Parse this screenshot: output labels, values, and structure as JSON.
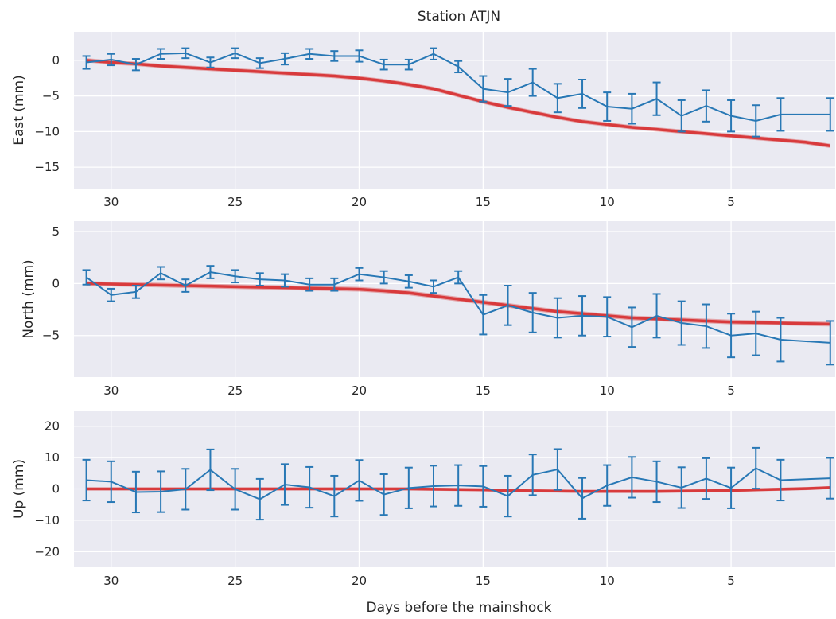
{
  "title": "Station ATJN",
  "xlabel": "Days before the mainshock",
  "colors": {
    "background": "#eaeaf2",
    "grid": "#ffffff",
    "observations": "#2878b5",
    "model": "#d62728"
  },
  "chart_data": [
    {
      "type": "line",
      "name": "east",
      "ylabel": "East (mm)",
      "xlim": [
        31.5,
        0.8
      ],
      "ylim": [
        -18,
        4
      ],
      "xticks": [
        30,
        25,
        20,
        15,
        10,
        5
      ],
      "yticks": [
        0,
        -5,
        -10,
        -15
      ],
      "grid": true,
      "series": [
        {
          "kind": "errorbar",
          "x": [
            31,
            30,
            29,
            28,
            27,
            26,
            25,
            24,
            23,
            22,
            21,
            20,
            19,
            18,
            17,
            16,
            15,
            14,
            13,
            12,
            11,
            10,
            9,
            8,
            7,
            6,
            5,
            4,
            3,
            1
          ],
          "y": [
            -0.3,
            0.1,
            -0.6,
            0.9,
            1.0,
            -0.3,
            1.0,
            -0.4,
            0.2,
            0.9,
            0.6,
            0.6,
            -0.6,
            -0.6,
            0.9,
            -0.9,
            -4.0,
            -4.5,
            -3.1,
            -5.3,
            -4.7,
            -6.5,
            -6.8,
            -5.4,
            -7.8,
            -6.4,
            -7.8,
            -8.5,
            -7.6,
            -7.6
          ],
          "err": [
            0.9,
            0.8,
            0.8,
            0.7,
            0.7,
            0.7,
            0.7,
            0.7,
            0.8,
            0.7,
            0.7,
            0.8,
            0.7,
            0.7,
            0.8,
            0.8,
            1.8,
            1.9,
            1.9,
            2.0,
            2.0,
            2.0,
            2.1,
            2.3,
            2.2,
            2.2,
            2.2,
            2.2,
            2.3,
            2.3
          ]
        },
        {
          "kind": "band",
          "x": [
            31,
            30,
            29,
            28,
            27,
            26,
            25,
            24,
            23,
            22,
            21,
            20,
            19,
            18,
            17,
            16,
            15,
            14,
            13,
            12,
            11,
            10,
            9,
            8,
            7,
            6,
            5,
            4,
            3,
            2,
            1
          ],
          "y": [
            0,
            -0.3,
            -0.5,
            -0.8,
            -1.0,
            -1.2,
            -1.4,
            -1.6,
            -1.8,
            -2.0,
            -2.2,
            -2.5,
            -2.9,
            -3.4,
            -4.0,
            -4.9,
            -5.8,
            -6.6,
            -7.3,
            -8.0,
            -8.6,
            -9.0,
            -9.4,
            -9.7,
            -10.0,
            -10.3,
            -10.6,
            -10.9,
            -11.2,
            -11.5,
            -12.0
          ],
          "width": 0.6
        }
      ]
    },
    {
      "type": "line",
      "name": "north",
      "ylabel": "North (mm)",
      "xlim": [
        31.5,
        0.8
      ],
      "ylim": [
        -9,
        6
      ],
      "xticks": [
        30,
        25,
        20,
        15,
        10,
        5
      ],
      "yticks": [
        5,
        0,
        -5
      ],
      "grid": true,
      "series": [
        {
          "kind": "errorbar",
          "x": [
            31,
            30,
            29,
            28,
            27,
            26,
            25,
            24,
            23,
            22,
            21,
            20,
            19,
            18,
            17,
            16,
            15,
            14,
            13,
            12,
            11,
            10,
            9,
            8,
            7,
            6,
            5,
            4,
            3,
            1
          ],
          "y": [
            0.6,
            -1.1,
            -0.8,
            1.0,
            -0.2,
            1.1,
            0.7,
            0.4,
            0.3,
            -0.1,
            -0.1,
            0.9,
            0.6,
            0.2,
            -0.3,
            0.6,
            -3.0,
            -2.1,
            -2.8,
            -3.3,
            -3.1,
            -3.2,
            -4.2,
            -3.1,
            -3.8,
            -4.1,
            -5.0,
            -4.8,
            -5.4,
            -5.7
          ],
          "err": [
            0.7,
            0.6,
            0.6,
            0.6,
            0.6,
            0.6,
            0.6,
            0.6,
            0.6,
            0.6,
            0.6,
            0.6,
            0.6,
            0.6,
            0.6,
            0.6,
            1.9,
            1.9,
            1.9,
            1.9,
            1.9,
            1.9,
            1.9,
            2.1,
            2.1,
            2.1,
            2.1,
            2.1,
            2.1,
            2.1
          ]
        },
        {
          "kind": "band",
          "x": [
            31,
            30,
            29,
            28,
            27,
            26,
            25,
            24,
            23,
            22,
            21,
            20,
            19,
            18,
            17,
            16,
            15,
            14,
            13,
            12,
            11,
            10,
            9,
            8,
            7,
            6,
            5,
            4,
            3,
            2,
            1
          ],
          "y": [
            0,
            -0.05,
            -0.1,
            -0.15,
            -0.2,
            -0.25,
            -0.3,
            -0.35,
            -0.4,
            -0.45,
            -0.5,
            -0.55,
            -0.7,
            -0.9,
            -1.2,
            -1.5,
            -1.8,
            -2.1,
            -2.4,
            -2.7,
            -2.9,
            -3.1,
            -3.3,
            -3.4,
            -3.5,
            -3.6,
            -3.7,
            -3.75,
            -3.8,
            -3.85,
            -3.9
          ],
          "width": 0.45
        }
      ]
    },
    {
      "type": "line",
      "name": "up",
      "ylabel": "Up (mm)",
      "xlim": [
        31.5,
        0.8
      ],
      "ylim": [
        -25,
        25
      ],
      "xticks": [
        30,
        25,
        20,
        15,
        10,
        5
      ],
      "yticks": [
        20,
        10,
        0,
        -10,
        -20
      ],
      "grid": true,
      "series": [
        {
          "kind": "errorbar",
          "x": [
            31,
            30,
            29,
            28,
            27,
            26,
            25,
            24,
            23,
            22,
            21,
            20,
            19,
            18,
            17,
            16,
            15,
            14,
            13,
            12,
            11,
            10,
            9,
            8,
            7,
            6,
            5,
            4,
            3,
            1
          ],
          "y": [
            2.8,
            2.3,
            -1.0,
            -0.9,
            -0.1,
            6.1,
            -0.1,
            -3.3,
            1.4,
            0.5,
            -2.3,
            2.7,
            -1.8,
            0.3,
            0.9,
            1.1,
            0.8,
            -2.3,
            4.5,
            6.2,
            -3.0,
            1.1,
            3.7,
            2.3,
            0.4,
            3.3,
            0.3,
            6.6,
            2.8,
            3.4
          ],
          "err": [
            6.5,
            6.5,
            6.5,
            6.5,
            6.5,
            6.5,
            6.5,
            6.5,
            6.5,
            6.5,
            6.5,
            6.5,
            6.5,
            6.5,
            6.5,
            6.5,
            6.5,
            6.5,
            6.5,
            6.5,
            6.5,
            6.5,
            6.5,
            6.5,
            6.5,
            6.5,
            6.5,
            6.5,
            6.5,
            6.5
          ]
        },
        {
          "kind": "band",
          "x": [
            31,
            30,
            29,
            28,
            27,
            26,
            25,
            24,
            23,
            22,
            21,
            20,
            19,
            18,
            17,
            16,
            15,
            14,
            13,
            12,
            11,
            10,
            9,
            8,
            7,
            6,
            5,
            4,
            3,
            2,
            1
          ],
          "y": [
            0,
            0,
            0,
            0,
            0,
            0,
            0,
            0,
            0,
            0,
            0,
            0,
            0,
            0,
            -0.1,
            -0.2,
            -0.3,
            -0.5,
            -0.6,
            -0.7,
            -0.8,
            -0.8,
            -0.8,
            -0.8,
            -0.7,
            -0.6,
            -0.5,
            -0.3,
            -0.1,
            0.1,
            0.4
          ],
          "width": 1.0
        }
      ]
    }
  ]
}
